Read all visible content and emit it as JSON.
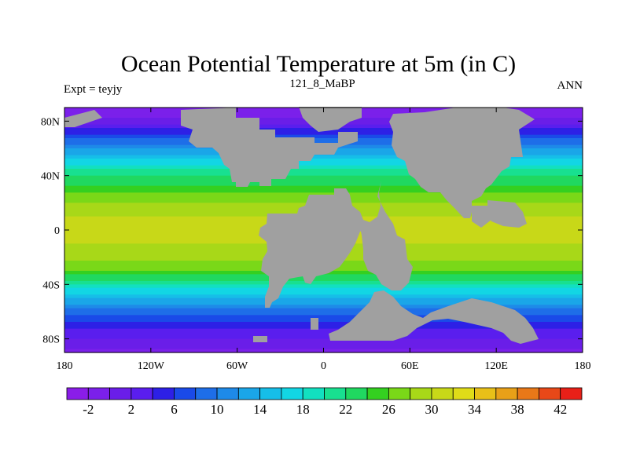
{
  "chart_data": {
    "type": "heatmap",
    "title": "Ocean Potential Temperature at 5m (in C)",
    "left_label": "Expt = teyjy",
    "center_label": "121_8_MaBP",
    "right_label": "ANN",
    "x_ticks": [
      "180",
      "120W",
      "60W",
      "0",
      "60E",
      "120E",
      "180"
    ],
    "x_tick_values": [
      -180,
      -120,
      -60,
      0,
      60,
      120,
      180
    ],
    "y_ticks": [
      "80N",
      "40N",
      "0",
      "40S",
      "80S"
    ],
    "y_tick_values": [
      80,
      40,
      0,
      -40,
      -80
    ],
    "xlim": [
      -180,
      180
    ],
    "ylim": [
      -90,
      90
    ],
    "colorbar_labels": [
      "-2",
      "2",
      "6",
      "10",
      "14",
      "18",
      "22",
      "26",
      "30",
      "34",
      "38",
      "42"
    ],
    "colorbar_min": -4,
    "colorbar_max": 44,
    "colorbar_step": 2,
    "colorbar_colors": [
      "#8a1de8",
      "#7b20ea",
      "#6a1ee8",
      "#5a1eee",
      "#2d20e6",
      "#1a4ae8",
      "#1e6ee8",
      "#1e8ae8",
      "#1aa6e8",
      "#16bee8",
      "#12d6e4",
      "#12e0c0",
      "#18e090",
      "#20d860",
      "#34d020",
      "#7ad818",
      "#a8d818",
      "#c8d818",
      "#e0dc18",
      "#e8c018",
      "#e8a018",
      "#e87818",
      "#e84818",
      "#e82018"
    ],
    "zonal_profile_lat": [
      90,
      80,
      70,
      60,
      50,
      40,
      30,
      20,
      10,
      0,
      -10,
      -20,
      -30,
      -40,
      -50,
      -60,
      -70,
      -80,
      -90
    ],
    "zonal_profile_temp": [
      -2,
      1,
      6,
      12,
      17,
      22,
      25,
      28,
      30,
      31,
      30,
      29,
      26,
      20,
      14,
      9,
      5,
      2,
      -1
    ],
    "land_color": "#a0a0a0"
  }
}
